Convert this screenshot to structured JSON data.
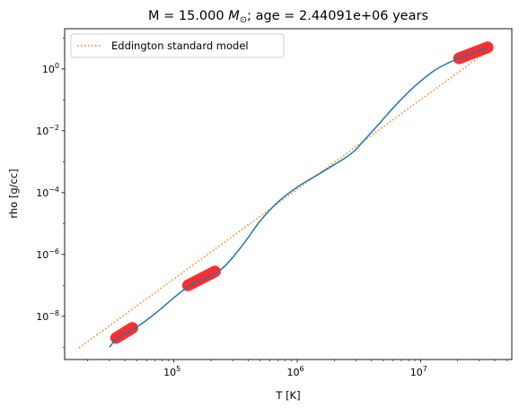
{
  "chart_data": {
    "type": "line",
    "title": {
      "prefix": "M = 15.000 ",
      "symbol": "M",
      "sub": "⊙",
      "suffix": "; age = 2.44091e+06 years"
    },
    "xlabel": "T [K]",
    "ylabel": "rho [g/cc]",
    "xscale": "log",
    "yscale": "log",
    "xlim": [
      13000,
      55000000
    ],
    "ylim": [
      4e-10,
      20
    ],
    "xticks": [
      {
        "value": 100000,
        "base": "10",
        "exp": "5"
      },
      {
        "value": 1000000,
        "base": "10",
        "exp": "6"
      },
      {
        "value": 10000000,
        "base": "10",
        "exp": "7"
      }
    ],
    "yticks": [
      {
        "value": 1e-08,
        "base": "10",
        "exp": "−8"
      },
      {
        "value": 1e-06,
        "base": "10",
        "exp": "−6"
      },
      {
        "value": 0.0001,
        "base": "10",
        "exp": "−4"
      },
      {
        "value": 0.01,
        "base": "10",
        "exp": "−2"
      },
      {
        "value": 1,
        "base": "10",
        "exp": "0"
      }
    ],
    "grid": false,
    "legend": {
      "location": "upper left",
      "entries": [
        "Eddington standard model"
      ]
    },
    "series": [
      {
        "name": "",
        "style": "solid",
        "color": "#1f77b4",
        "x": [
          30000,
          33000,
          36000,
          40000,
          45000,
          50000,
          60000,
          75000,
          100000,
          130000,
          160000,
          200000,
          230000,
          270000,
          320000,
          400000,
          500000,
          700000,
          1000000,
          1500000,
          2000000,
          2500000,
          3000000,
          3500000,
          4500000,
          6000000,
          8000000,
          10000000,
          13000000,
          17000000,
          21000000,
          26000000,
          31000000,
          35000000
        ],
        "y": [
          1e-09,
          1.6e-09,
          2.2e-09,
          2.8e-09,
          3.5e-09,
          4.5e-09,
          7.5e-09,
          1.5e-08,
          4e-08,
          9e-08,
          1.4e-07,
          2.1e-07,
          2.8e-07,
          5e-07,
          1.1e-06,
          3.5e-06,
          1.2e-05,
          5e-05,
          0.00015,
          0.0004,
          0.0008,
          0.0014,
          0.0025,
          0.005,
          0.015,
          0.055,
          0.18,
          0.4,
          0.9,
          1.6,
          2.3,
          3.2,
          4.1,
          4.8
        ]
      },
      {
        "name": "Eddington standard model",
        "style": "dotted",
        "color": "#ff7f0e",
        "x": [
          17000,
          35000000
        ],
        "y": [
          9.5e-10,
          3.8
        ]
      }
    ],
    "highlights": [
      {
        "color": "#ff0000",
        "x": [
          34000,
          46000
        ],
        "y": [
          2e-09,
          4.2e-09
        ]
      },
      {
        "color": "#ff0000",
        "x": [
          130000,
          215000
        ],
        "y": [
          1e-07,
          2.8e-07
        ]
      },
      {
        "color": "#ff0000",
        "x": [
          20500000,
          35000000
        ],
        "y": [
          2.2,
          5
        ]
      }
    ]
  }
}
